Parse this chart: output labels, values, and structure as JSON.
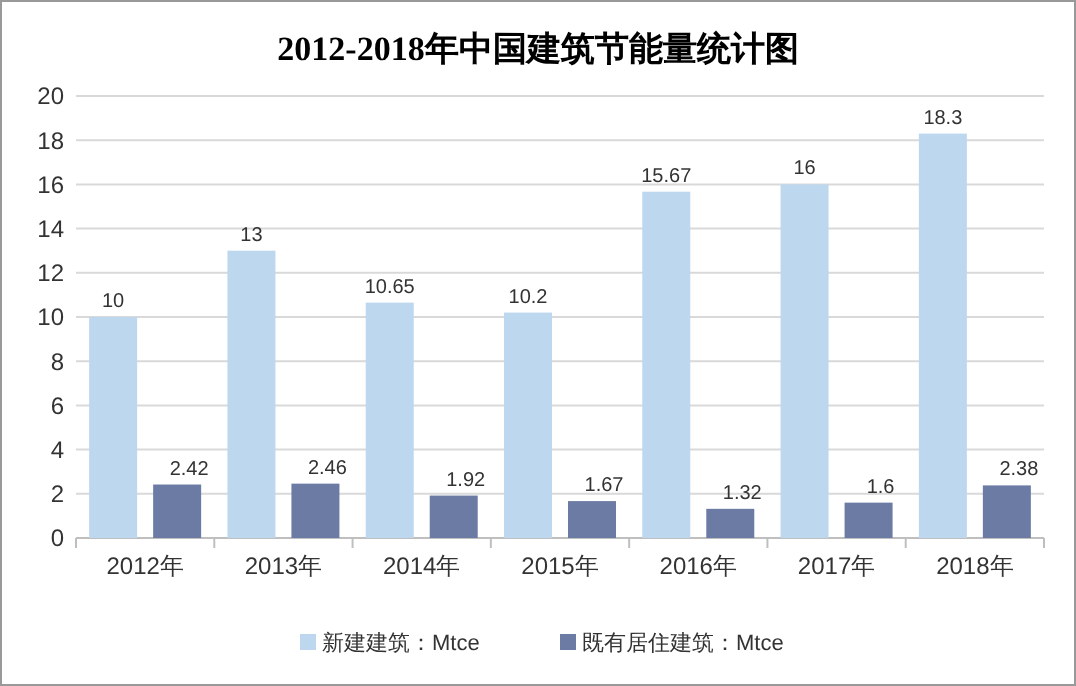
{
  "chart_data": {
    "type": "bar",
    "title": "2012-2018年中国建筑节能量统计图",
    "categories": [
      "2012年",
      "2013年",
      "2014年",
      "2015年",
      "2016年",
      "2017年",
      "2018年"
    ],
    "series": [
      {
        "name": "新建建筑：Mtce",
        "color": "#bdd7ee",
        "values": [
          10,
          13,
          10.65,
          10.2,
          15.67,
          16,
          18.3
        ]
      },
      {
        "name": "既有居住建筑：Mtce",
        "color": "#6b7ba4",
        "values": [
          2.42,
          2.46,
          1.92,
          1.67,
          1.32,
          1.6,
          2.38
        ]
      }
    ],
    "ylim": [
      0,
      20
    ],
    "yticks": [
      0,
      2,
      4,
      6,
      8,
      10,
      12,
      14,
      16,
      18,
      20
    ],
    "grid": "y",
    "legend": "bottom",
    "data_labels": true
  }
}
